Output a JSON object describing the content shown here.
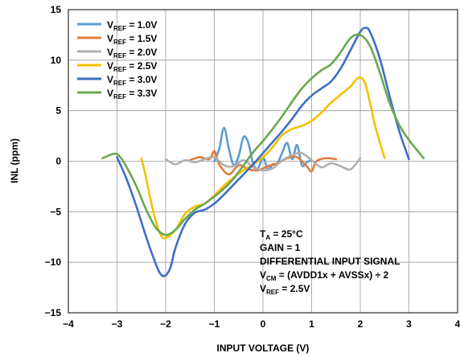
{
  "chart_data": {
    "type": "line",
    "xlabel": "INPUT VOLTAGE (V)",
    "ylabel": "INL (ppm)",
    "xlim": [
      -4,
      4
    ],
    "ylim": [
      -15,
      15
    ],
    "x_ticks": [
      -4,
      -3,
      -2,
      -1,
      0,
      1,
      2,
      3,
      4
    ],
    "y_ticks": [
      -15,
      -10,
      -5,
      0,
      5,
      10,
      15
    ],
    "x_tick_labels": [
      "−4",
      "−3",
      "−2",
      "−1",
      "0",
      "1",
      "2",
      "3",
      "4"
    ],
    "y_tick_labels": [
      "−15",
      "−10",
      "−5",
      "0",
      "5",
      "10",
      "15"
    ],
    "grid": true,
    "legend_placement": "top-left",
    "series": [
      {
        "name": "1.0V",
        "legend_main": "V",
        "legend_sub": "REF",
        "legend_rest": " = 1.0V",
        "color": "#5b9bd5",
        "x": [
          -1.0,
          -0.9,
          -0.8,
          -0.7,
          -0.6,
          -0.5,
          -0.4,
          -0.3,
          -0.2,
          -0.1,
          0.0,
          0.1,
          0.2,
          0.3,
          0.4,
          0.5,
          0.6,
          0.7,
          0.8,
          0.9,
          1.0
        ],
        "y": [
          0.0,
          1.2,
          3.3,
          1.2,
          -0.4,
          0.5,
          2.4,
          1.8,
          -0.3,
          -0.7,
          0.4,
          -0.8,
          -0.3,
          -0.2,
          0.9,
          1.8,
          0.2,
          1.6,
          -0.4,
          -0.1,
          0.1
        ]
      },
      {
        "name": "1.5V",
        "legend_main": "V",
        "legend_sub": "REF",
        "legend_rest": " = 1.5V",
        "color": "#e07b39",
        "x": [
          -1.5,
          -1.3,
          -1.1,
          -1.0,
          -0.9,
          -0.7,
          -0.5,
          -0.3,
          -0.1,
          0.1,
          0.3,
          0.5,
          0.7,
          0.9,
          1.0,
          1.1,
          1.3,
          1.5
        ],
        "y": [
          0.1,
          0.4,
          0.2,
          1.0,
          -0.3,
          -1.3,
          -0.4,
          -0.8,
          -0.9,
          -0.5,
          -0.2,
          0.3,
          0.4,
          -0.5,
          -1.0,
          0.0,
          0.3,
          0.2
        ]
      },
      {
        "name": "2.0V",
        "legend_main": "V",
        "legend_sub": "REF",
        "legend_rest": " = 2.0V",
        "color": "#b0b0b0",
        "x": [
          -2.0,
          -1.8,
          -1.6,
          -1.4,
          -1.2,
          -1.0,
          -0.8,
          -0.6,
          -0.4,
          -0.2,
          0.0,
          0.2,
          0.4,
          0.6,
          0.8,
          1.0,
          1.2,
          1.4,
          1.6,
          1.8,
          2.0
        ],
        "y": [
          0.2,
          -0.3,
          0.1,
          -0.1,
          0.2,
          0.4,
          -0.4,
          -0.5,
          0.1,
          -0.6,
          -0.9,
          -0.7,
          0.1,
          0.6,
          0.8,
          0.1,
          -0.6,
          -0.2,
          -0.5,
          -0.8,
          0.3
        ]
      },
      {
        "name": "2.5V",
        "legend_main": "V",
        "legend_sub": "REF",
        "legend_rest": " = 2.5V",
        "color": "#f5c000",
        "x": [
          -2.5,
          -2.4,
          -2.3,
          -2.2,
          -2.1,
          -2.0,
          -1.8,
          -1.6,
          -1.4,
          -1.2,
          -1.0,
          -0.8,
          -0.6,
          -0.4,
          -0.2,
          0.0,
          0.2,
          0.4,
          0.6,
          0.8,
          1.0,
          1.2,
          1.4,
          1.6,
          1.8,
          1.9,
          2.0,
          2.1,
          2.2,
          2.3,
          2.4,
          2.5
        ],
        "y": [
          0.3,
          -1.7,
          -4.0,
          -6.0,
          -7.3,
          -7.6,
          -6.8,
          -5.2,
          -4.5,
          -4.2,
          -3.4,
          -2.4,
          -1.6,
          -0.9,
          -0.3,
          0.4,
          1.4,
          2.6,
          3.2,
          3.5,
          4.0,
          4.8,
          5.8,
          6.6,
          7.4,
          8.0,
          8.3,
          7.7,
          5.8,
          3.6,
          1.9,
          0.3
        ]
      },
      {
        "name": "3.0V",
        "legend_main": "V",
        "legend_sub": "REF",
        "legend_rest": " = 3.0V",
        "color": "#3f6fc6",
        "x": [
          -3.0,
          -2.8,
          -2.6,
          -2.4,
          -2.2,
          -2.1,
          -2.0,
          -1.9,
          -1.8,
          -1.6,
          -1.4,
          -1.2,
          -1.0,
          -0.8,
          -0.6,
          -0.4,
          -0.2,
          0.0,
          0.2,
          0.4,
          0.6,
          0.8,
          1.0,
          1.2,
          1.4,
          1.6,
          1.8,
          2.0,
          2.1,
          2.2,
          2.4,
          2.6,
          2.8,
          3.0
        ],
        "y": [
          0.4,
          -1.8,
          -4.5,
          -7.5,
          -10.2,
          -11.2,
          -11.3,
          -10.5,
          -8.6,
          -6.2,
          -5.1,
          -4.8,
          -4.2,
          -3.3,
          -2.3,
          -1.3,
          -0.3,
          0.8,
          1.9,
          3.0,
          4.2,
          5.5,
          6.5,
          7.2,
          7.9,
          9.2,
          11.0,
          12.8,
          13.2,
          12.8,
          10.2,
          6.5,
          3.0,
          0.2
        ]
      },
      {
        "name": "3.3V",
        "legend_main": "V",
        "legend_sub": "REF",
        "legend_rest": " = 3.3V",
        "color": "#6aa84f",
        "x": [
          -3.3,
          -3.2,
          -3.1,
          -3.0,
          -2.9,
          -2.8,
          -2.6,
          -2.4,
          -2.2,
          -2.0,
          -1.8,
          -1.6,
          -1.4,
          -1.2,
          -1.0,
          -0.8,
          -0.6,
          -0.4,
          -0.2,
          0.0,
          0.2,
          0.4,
          0.6,
          0.8,
          1.0,
          1.2,
          1.4,
          1.6,
          1.8,
          2.0,
          2.2,
          2.4,
          2.6,
          2.8,
          3.0,
          3.2,
          3.3
        ],
        "y": [
          0.3,
          0.5,
          0.7,
          0.7,
          0.2,
          -0.6,
          -2.5,
          -4.8,
          -6.6,
          -7.3,
          -6.8,
          -5.7,
          -4.8,
          -4.2,
          -3.5,
          -2.7,
          -1.7,
          -0.4,
          0.9,
          2.0,
          3.2,
          4.5,
          5.9,
          7.2,
          8.2,
          9.0,
          9.6,
          10.8,
          12.2,
          12.5,
          11.4,
          8.8,
          5.8,
          3.6,
          2.1,
          0.9,
          0.3
        ]
      }
    ],
    "annotations": [
      {
        "main": "T",
        "sub": "A",
        "rest": " = 25°C"
      },
      {
        "main": "GAIN = 1",
        "sub": "",
        "rest": ""
      },
      {
        "main": "DIFFERENTIAL INPUT SIGNAL",
        "sub": "",
        "rest": ""
      },
      {
        "main": "V",
        "sub": "CM",
        "rest": " = (AVDD1x + AVSSx) ÷ 2"
      },
      {
        "main": "V",
        "sub": "REF",
        "rest": " = 2.5V"
      }
    ]
  }
}
